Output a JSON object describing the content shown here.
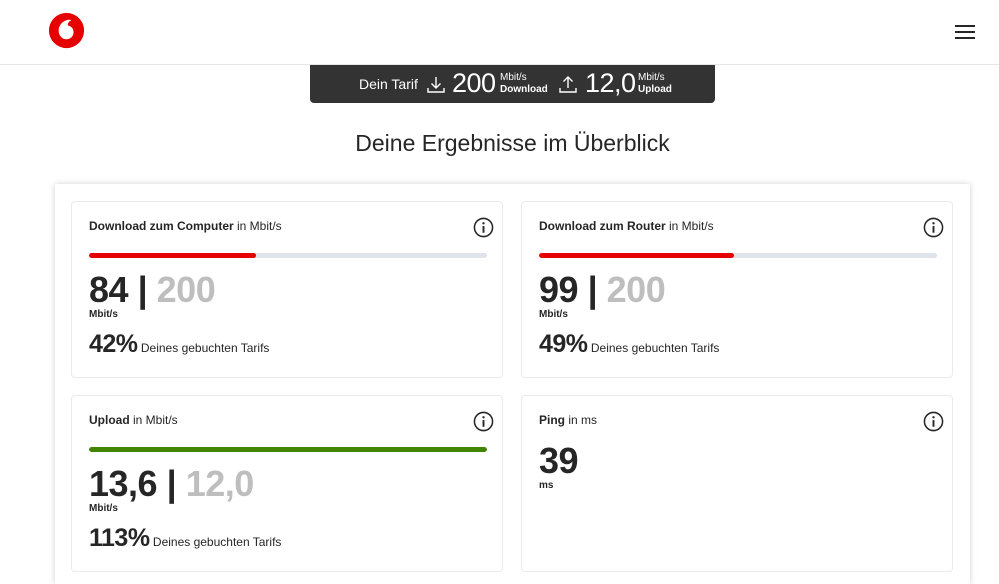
{
  "header": {
    "logo_icon": "vodafone-logo",
    "menu_icon": "hamburger-menu-icon",
    "accent": "#e60000"
  },
  "tariff": {
    "label": "Dein Tarif",
    "download_icon": "download-arrow-icon",
    "download_value": "200",
    "download_unit": "Mbit/s",
    "download_label": "Download",
    "upload_icon": "upload-arrow-icon",
    "upload_value": "12,0",
    "upload_unit": "Mbit/s",
    "upload_label": "Upload"
  },
  "section_title": "Deine Ergebnisse im Überblick",
  "cards": {
    "download_computer": {
      "title": "Download zum Computer",
      "unit_suffix": " in Mbit/s",
      "value": "84",
      "separator": "|",
      "max": "200",
      "unit": "Mbit/s",
      "percent": "42%",
      "percent_label": " Deines gebuchten Tarifs",
      "fill_fraction": 0.42,
      "bar_color": "#e60000"
    },
    "download_router": {
      "title": "Download zum Router",
      "unit_suffix": " in Mbit/s",
      "value": "99",
      "separator": "|",
      "max": "200",
      "unit": "Mbit/s",
      "percent": "49%",
      "percent_label": " Deines gebuchten Tarifs",
      "fill_fraction": 0.49,
      "bar_color": "#e60000"
    },
    "upload": {
      "title": "Upload",
      "unit_suffix": " in Mbit/s",
      "value": "13,6",
      "separator": "|",
      "max": "12,0",
      "unit": "Mbit/s",
      "percent": "113%",
      "percent_label": " Deines gebuchten Tarifs",
      "fill_fraction": 1.0,
      "bar_color": "#428503"
    },
    "ping": {
      "title": "Ping",
      "unit_suffix": " in ms",
      "value": "39",
      "unit": "ms"
    }
  },
  "info_icon": "info-icon"
}
